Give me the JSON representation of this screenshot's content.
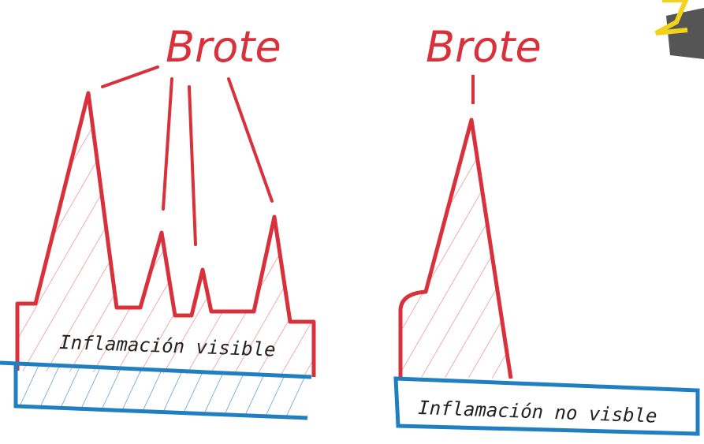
{
  "diagrams": [
    {
      "peak_label": "Brote",
      "band_label": "Inflamación visible"
    },
    {
      "peak_label": "Brote",
      "band_label": "Inflamación no visble"
    }
  ]
}
